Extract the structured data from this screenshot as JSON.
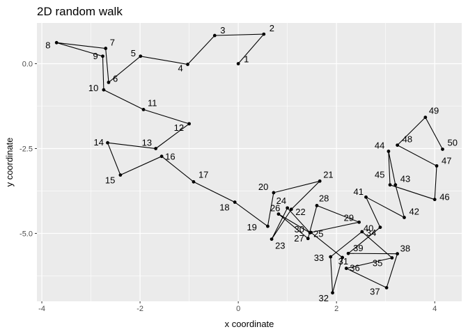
{
  "chart_data": {
    "type": "scatter",
    "title": "2D random walk",
    "xlabel": "x coordinate",
    "ylabel": "y coordinate",
    "xlim": [
      -4.1,
      4.55
    ],
    "ylim": [
      -7.0,
      1.2
    ],
    "xticks": [
      -4,
      -2,
      0,
      2,
      4
    ],
    "xtick_labels": [
      "-4",
      "-2",
      "0",
      "2",
      "4"
    ],
    "yticks": [
      0.0,
      -2.5,
      -5.0
    ],
    "ytick_labels": [
      "0.0",
      "-2.5",
      "-5.0"
    ],
    "grid": true,
    "connected_path": true,
    "panel_color": "#ebebeb",
    "grid_color": "#ffffff",
    "point_color": "#000000",
    "points": [
      {
        "label": "1",
        "x": 0.0,
        "y": 0.0
      },
      {
        "label": "2",
        "x": 0.52,
        "y": 0.87
      },
      {
        "label": "3",
        "x": -0.48,
        "y": 0.83
      },
      {
        "label": "4",
        "x": -1.03,
        "y": -0.02
      },
      {
        "label": "5",
        "x": -1.99,
        "y": 0.22
      },
      {
        "label": "6",
        "x": -2.64,
        "y": -0.55
      },
      {
        "label": "7",
        "x": -2.7,
        "y": 0.45
      },
      {
        "label": "8",
        "x": -3.7,
        "y": 0.62
      },
      {
        "label": "9",
        "x": -2.76,
        "y": 0.22
      },
      {
        "label": "10",
        "x": -2.74,
        "y": -0.77
      },
      {
        "label": "11",
        "x": -1.93,
        "y": -1.35
      },
      {
        "label": "12",
        "x": -1.0,
        "y": -1.77
      },
      {
        "label": "13",
        "x": -1.68,
        "y": -2.5
      },
      {
        "label": "14",
        "x": -2.66,
        "y": -2.33
      },
      {
        "label": "15",
        "x": -2.4,
        "y": -3.28
      },
      {
        "label": "16",
        "x": -1.56,
        "y": -2.73
      },
      {
        "label": "17",
        "x": -0.91,
        "y": -3.48
      },
      {
        "label": "18",
        "x": -0.07,
        "y": -4.08
      },
      {
        "label": "19",
        "x": 0.6,
        "y": -4.79
      },
      {
        "label": "20",
        "x": 0.72,
        "y": -3.8
      },
      {
        "label": "21",
        "x": 1.66,
        "y": -3.46
      },
      {
        "label": "22",
        "x": 1.08,
        "y": -4.29
      },
      {
        "label": "23",
        "x": 0.68,
        "y": -5.17
      },
      {
        "label": "24",
        "x": 1.0,
        "y": -4.25
      },
      {
        "label": "25",
        "x": 1.46,
        "y": -4.98
      },
      {
        "label": "26",
        "x": 0.82,
        "y": -4.43
      },
      {
        "label": "27",
        "x": 1.42,
        "y": -5.15
      },
      {
        "label": "28",
        "x": 1.6,
        "y": -4.18
      },
      {
        "label": "29",
        "x": 2.46,
        "y": -4.67
      },
      {
        "label": "30",
        "x": 1.48,
        "y": -4.97
      },
      {
        "label": "31",
        "x": 2.12,
        "y": -5.71
      },
      {
        "label": "32",
        "x": 1.92,
        "y": -6.75
      },
      {
        "label": "33",
        "x": 1.88,
        "y": -5.69
      },
      {
        "label": "34",
        "x": 2.52,
        "y": -4.95
      },
      {
        "label": "35",
        "x": 3.13,
        "y": -5.72
      },
      {
        "label": "36",
        "x": 2.2,
        "y": -6.03
      },
      {
        "label": "37",
        "x": 3.02,
        "y": -6.6
      },
      {
        "label": "38",
        "x": 3.24,
        "y": -5.6
      },
      {
        "label": "39",
        "x": 2.24,
        "y": -5.59
      },
      {
        "label": "40",
        "x": 2.89,
        "y": -4.82
      },
      {
        "label": "41",
        "x": 2.6,
        "y": -3.93
      },
      {
        "label": "42",
        "x": 3.38,
        "y": -4.53
      },
      {
        "label": "43",
        "x": 3.2,
        "y": -3.57
      },
      {
        "label": "44",
        "x": 3.06,
        "y": -2.58
      },
      {
        "label": "45",
        "x": 3.09,
        "y": -3.57
      },
      {
        "label": "46",
        "x": 4.0,
        "y": -4.0
      },
      {
        "label": "47",
        "x": 4.04,
        "y": -3.01
      },
      {
        "label": "48",
        "x": 3.24,
        "y": -2.4
      },
      {
        "label": "49",
        "x": 3.81,
        "y": -1.58
      },
      {
        "label": "50",
        "x": 4.16,
        "y": -2.52
      }
    ]
  }
}
